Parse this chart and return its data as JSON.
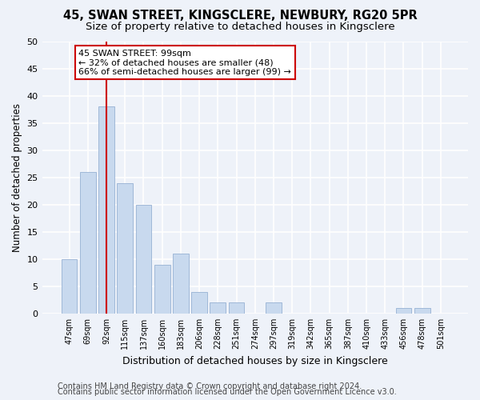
{
  "title": "45, SWAN STREET, KINGSCLERE, NEWBURY, RG20 5PR",
  "subtitle": "Size of property relative to detached houses in Kingsclere",
  "xlabel": "Distribution of detached houses by size in Kingsclere",
  "ylabel": "Number of detached properties",
  "bin_labels": [
    "47sqm",
    "69sqm",
    "92sqm",
    "115sqm",
    "137sqm",
    "160sqm",
    "183sqm",
    "206sqm",
    "228sqm",
    "251sqm",
    "274sqm",
    "297sqm",
    "319sqm",
    "342sqm",
    "365sqm",
    "387sqm",
    "410sqm",
    "433sqm",
    "456sqm",
    "478sqm",
    "501sqm"
  ],
  "bar_heights": [
    10,
    26,
    38,
    24,
    20,
    9,
    11,
    4,
    2,
    2,
    0,
    2,
    0,
    0,
    0,
    0,
    0,
    0,
    1,
    1,
    0
  ],
  "bar_color": "#c8d9ee",
  "bar_edge_color": "#a0b8d8",
  "vline_x_index": 2,
  "vline_color": "#cc0000",
  "annotation_title": "45 SWAN STREET: 99sqm",
  "annotation_line1": "← 32% of detached houses are smaller (48)",
  "annotation_line2": "66% of semi-detached houses are larger (99) →",
  "annotation_box_color": "#ffffff",
  "annotation_box_edge": "#cc0000",
  "ylim": [
    0,
    50
  ],
  "footer1": "Contains HM Land Registry data © Crown copyright and database right 2024.",
  "footer2": "Contains public sector information licensed under the Open Government Licence v3.0.",
  "background_color": "#eef2f9",
  "plot_background_color": "#eef2f9",
  "grid_color": "#ffffff",
  "title_fontsize": 10.5,
  "subtitle_fontsize": 9.5,
  "footer_fontsize": 7
}
